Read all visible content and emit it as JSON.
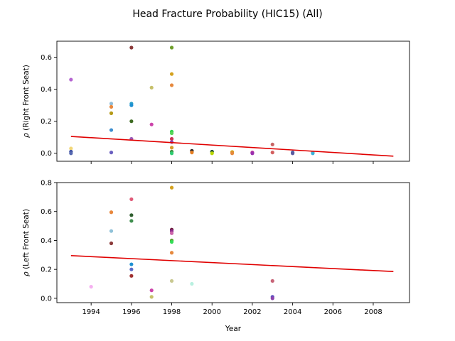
{
  "chart_data": {
    "title": "Head Fracture Probability (HIC15) (All)",
    "xlabel": "Year",
    "xlim": [
      1992.3,
      2009.8
    ],
    "x_ticks": [
      "1994",
      "1996",
      "1998",
      "2000",
      "2002",
      "2004",
      "2006",
      "2008"
    ],
    "x_tick_values": [
      1994,
      1996,
      1998,
      2000,
      2002,
      2004,
      2006,
      2008
    ],
    "subplots": [
      {
        "type": "scatter",
        "ylabel_symbol": "ρ",
        "ylabel_text": "(Right Front Seat)",
        "ylim": [
          -0.05,
          0.7
        ],
        "y_ticks": [
          "0.0",
          "0.2",
          "0.4",
          "0.6"
        ],
        "y_tick_values": [
          0.0,
          0.2,
          0.4,
          0.6
        ],
        "points": [
          {
            "x": 1993,
            "y": 0.46,
            "color": "#b565d1"
          },
          {
            "x": 1993,
            "y": 0.03,
            "color": "#f2d779"
          },
          {
            "x": 1993,
            "y": 0.01,
            "color": "#3b4c9e"
          },
          {
            "x": 1993,
            "y": 0.0,
            "color": "#5568b0"
          },
          {
            "x": 1995,
            "y": 0.31,
            "color": "#8fbcd8"
          },
          {
            "x": 1995,
            "y": 0.29,
            "color": "#e8873c"
          },
          {
            "x": 1995,
            "y": 0.25,
            "color": "#b59a17"
          },
          {
            "x": 1995,
            "y": 0.145,
            "color": "#3d8fd0"
          },
          {
            "x": 1995,
            "y": 0.005,
            "color": "#6a5fc0"
          },
          {
            "x": 1996,
            "y": 0.66,
            "color": "#8b3a3a"
          },
          {
            "x": 1996,
            "y": 0.31,
            "color": "#2a9fc9"
          },
          {
            "x": 1996,
            "y": 0.3,
            "color": "#1e90d2"
          },
          {
            "x": 1996,
            "y": 0.2,
            "color": "#3e6b22"
          },
          {
            "x": 1996,
            "y": 0.09,
            "color": "#9b59b6"
          },
          {
            "x": 1997,
            "y": 0.41,
            "color": "#c6c06a"
          },
          {
            "x": 1997,
            "y": 0.18,
            "color": "#cc44aa"
          },
          {
            "x": 1998,
            "y": 0.66,
            "color": "#6e9e2a"
          },
          {
            "x": 1998,
            "y": 0.495,
            "color": "#d4a11e"
          },
          {
            "x": 1998,
            "y": 0.425,
            "color": "#e6893e"
          },
          {
            "x": 1998,
            "y": 0.135,
            "color": "#2bd44a"
          },
          {
            "x": 1998,
            "y": 0.125,
            "color": "#5ad65a"
          },
          {
            "x": 1998,
            "y": 0.09,
            "color": "#cc3355"
          },
          {
            "x": 1998,
            "y": 0.07,
            "color": "#8e44ad"
          },
          {
            "x": 1998,
            "y": 0.035,
            "color": "#d99a2b"
          },
          {
            "x": 1998,
            "y": 0.01,
            "color": "#3e8e3e"
          },
          {
            "x": 1998,
            "y": 0.0,
            "color": "#2ecc71"
          },
          {
            "x": 1999,
            "y": 0.015,
            "color": "#222222"
          },
          {
            "x": 1999,
            "y": 0.005,
            "color": "#e67e22"
          },
          {
            "x": 2000,
            "y": 0.01,
            "color": "#1a4d2e"
          },
          {
            "x": 2000,
            "y": 0.0,
            "color": "#b8d600"
          },
          {
            "x": 2001,
            "y": 0.008,
            "color": "#d4a017"
          },
          {
            "x": 2001,
            "y": 0.0,
            "color": "#e6893e"
          },
          {
            "x": 2002,
            "y": 0.005,
            "color": "#c0399a"
          },
          {
            "x": 2002,
            "y": 0.0,
            "color": "#9b2fae"
          },
          {
            "x": 2003,
            "y": 0.055,
            "color": "#c86464"
          },
          {
            "x": 2003,
            "y": 0.005,
            "color": "#d35f5f"
          },
          {
            "x": 2004,
            "y": 0.005,
            "color": "#4466aa"
          },
          {
            "x": 2004,
            "y": 0.0,
            "color": "#5b5ba0"
          },
          {
            "x": 2005,
            "y": 0.005,
            "color": "#e68a3a"
          },
          {
            "x": 2005,
            "y": 0.0,
            "color": "#3ab0d9"
          }
        ],
        "trend": {
          "x": [
            1993,
            2009
          ],
          "y": [
            0.105,
            -0.018
          ],
          "color": "#e00000"
        }
      },
      {
        "type": "scatter",
        "ylabel_symbol": "ρ",
        "ylabel_text": "(Left Front Seat)",
        "ylim": [
          -0.03,
          0.8
        ],
        "y_ticks": [
          "0.0",
          "0.2",
          "0.4",
          "0.6",
          "0.8"
        ],
        "y_tick_values": [
          0.0,
          0.2,
          0.4,
          0.6,
          0.8
        ],
        "points": [
          {
            "x": 1994,
            "y": 0.08,
            "color": "#f5b0f0"
          },
          {
            "x": 1995,
            "y": 0.595,
            "color": "#e8873c"
          },
          {
            "x": 1995,
            "y": 0.465,
            "color": "#8fc1d8"
          },
          {
            "x": 1995,
            "y": 0.38,
            "color": "#8b3a3a"
          },
          {
            "x": 1996,
            "y": 0.685,
            "color": "#e05a78"
          },
          {
            "x": 1996,
            "y": 0.575,
            "color": "#2f5e2f"
          },
          {
            "x": 1996,
            "y": 0.535,
            "color": "#3e8e4e"
          },
          {
            "x": 1996,
            "y": 0.235,
            "color": "#1e90d2"
          },
          {
            "x": 1996,
            "y": 0.2,
            "color": "#5b6bc8"
          },
          {
            "x": 1996,
            "y": 0.155,
            "color": "#a03030"
          },
          {
            "x": 1997,
            "y": 0.055,
            "color": "#cc44aa"
          },
          {
            "x": 1997,
            "y": 0.01,
            "color": "#c6c06a"
          },
          {
            "x": 1998,
            "y": 0.765,
            "color": "#d4a11e"
          },
          {
            "x": 1998,
            "y": 0.475,
            "color": "#6a1b3a"
          },
          {
            "x": 1998,
            "y": 0.465,
            "color": "#8e2a8e"
          },
          {
            "x": 1998,
            "y": 0.45,
            "color": "#cc66aa"
          },
          {
            "x": 1998,
            "y": 0.4,
            "color": "#5aa02c"
          },
          {
            "x": 1998,
            "y": 0.39,
            "color": "#33dd55"
          },
          {
            "x": 1998,
            "y": 0.315,
            "color": "#e6893e"
          },
          {
            "x": 1998,
            "y": 0.12,
            "color": "#c8c890"
          },
          {
            "x": 1999,
            "y": 0.1,
            "color": "#b8f0e0"
          },
          {
            "x": 2003,
            "y": 0.12,
            "color": "#c86478"
          },
          {
            "x": 2003,
            "y": 0.01,
            "color": "#5b4fc0"
          },
          {
            "x": 2003,
            "y": 0.0,
            "color": "#8e44ad"
          }
        ],
        "trend": {
          "x": [
            1993,
            2009
          ],
          "y": [
            0.295,
            0.185
          ],
          "color": "#e00000"
        }
      }
    ]
  }
}
